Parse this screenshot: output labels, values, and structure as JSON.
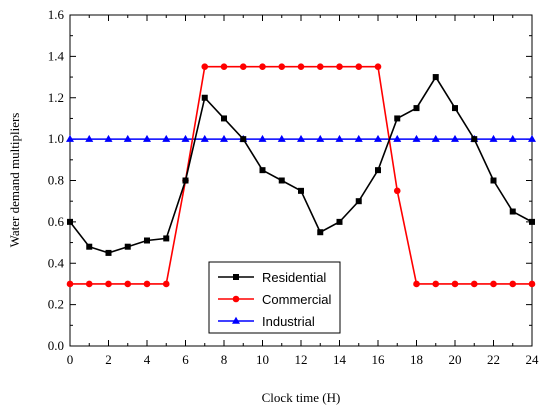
{
  "chart_data": {
    "type": "line",
    "title": "",
    "xlabel": "Clock time (H)",
    "ylabel": "Water demand multipliers",
    "xlim": [
      0,
      24
    ],
    "ylim": [
      0,
      1.6
    ],
    "x_ticks": [
      "0",
      "2",
      "4",
      "6",
      "8",
      "10",
      "12",
      "14",
      "16",
      "18",
      "20",
      "22",
      "24"
    ],
    "y_ticks": [
      "0.0",
      "0.2",
      "0.4",
      "0.6",
      "0.8",
      "1.0",
      "1.2",
      "1.4",
      "1.6"
    ],
    "grid": false,
    "legend_position": "lower-center",
    "x": [
      0,
      1,
      2,
      3,
      4,
      5,
      6,
      7,
      8,
      9,
      10,
      11,
      12,
      13,
      14,
      15,
      16,
      17,
      18,
      19,
      20,
      21,
      22,
      23,
      24
    ],
    "series": [
      {
        "name": "Residential",
        "color": "#000000",
        "marker": "square",
        "values": [
          0.6,
          0.48,
          0.45,
          0.48,
          0.51,
          0.52,
          0.8,
          1.2,
          1.1,
          1.0,
          0.85,
          0.8,
          0.75,
          0.55,
          0.6,
          0.7,
          0.85,
          1.1,
          1.15,
          1.3,
          1.15,
          1.0,
          0.8,
          0.65,
          0.6
        ]
      },
      {
        "name": "Commercial",
        "color": "#ff0000",
        "marker": "circle",
        "values": [
          0.3,
          0.3,
          0.3,
          0.3,
          0.3,
          0.3,
          0.8,
          1.35,
          1.35,
          1.35,
          1.35,
          1.35,
          1.35,
          1.35,
          1.35,
          1.35,
          1.35,
          0.75,
          0.3,
          0.3,
          0.3,
          0.3,
          0.3,
          0.3,
          0.3
        ]
      },
      {
        "name": "Industrial",
        "color": "#0000ff",
        "marker": "triangle",
        "values": [
          1.0,
          1.0,
          1.0,
          1.0,
          1.0,
          1.0,
          1.0,
          1.0,
          1.0,
          1.0,
          1.0,
          1.0,
          1.0,
          1.0,
          1.0,
          1.0,
          1.0,
          1.0,
          1.0,
          1.0,
          1.0,
          1.0,
          1.0,
          1.0,
          1.0
        ]
      }
    ]
  }
}
